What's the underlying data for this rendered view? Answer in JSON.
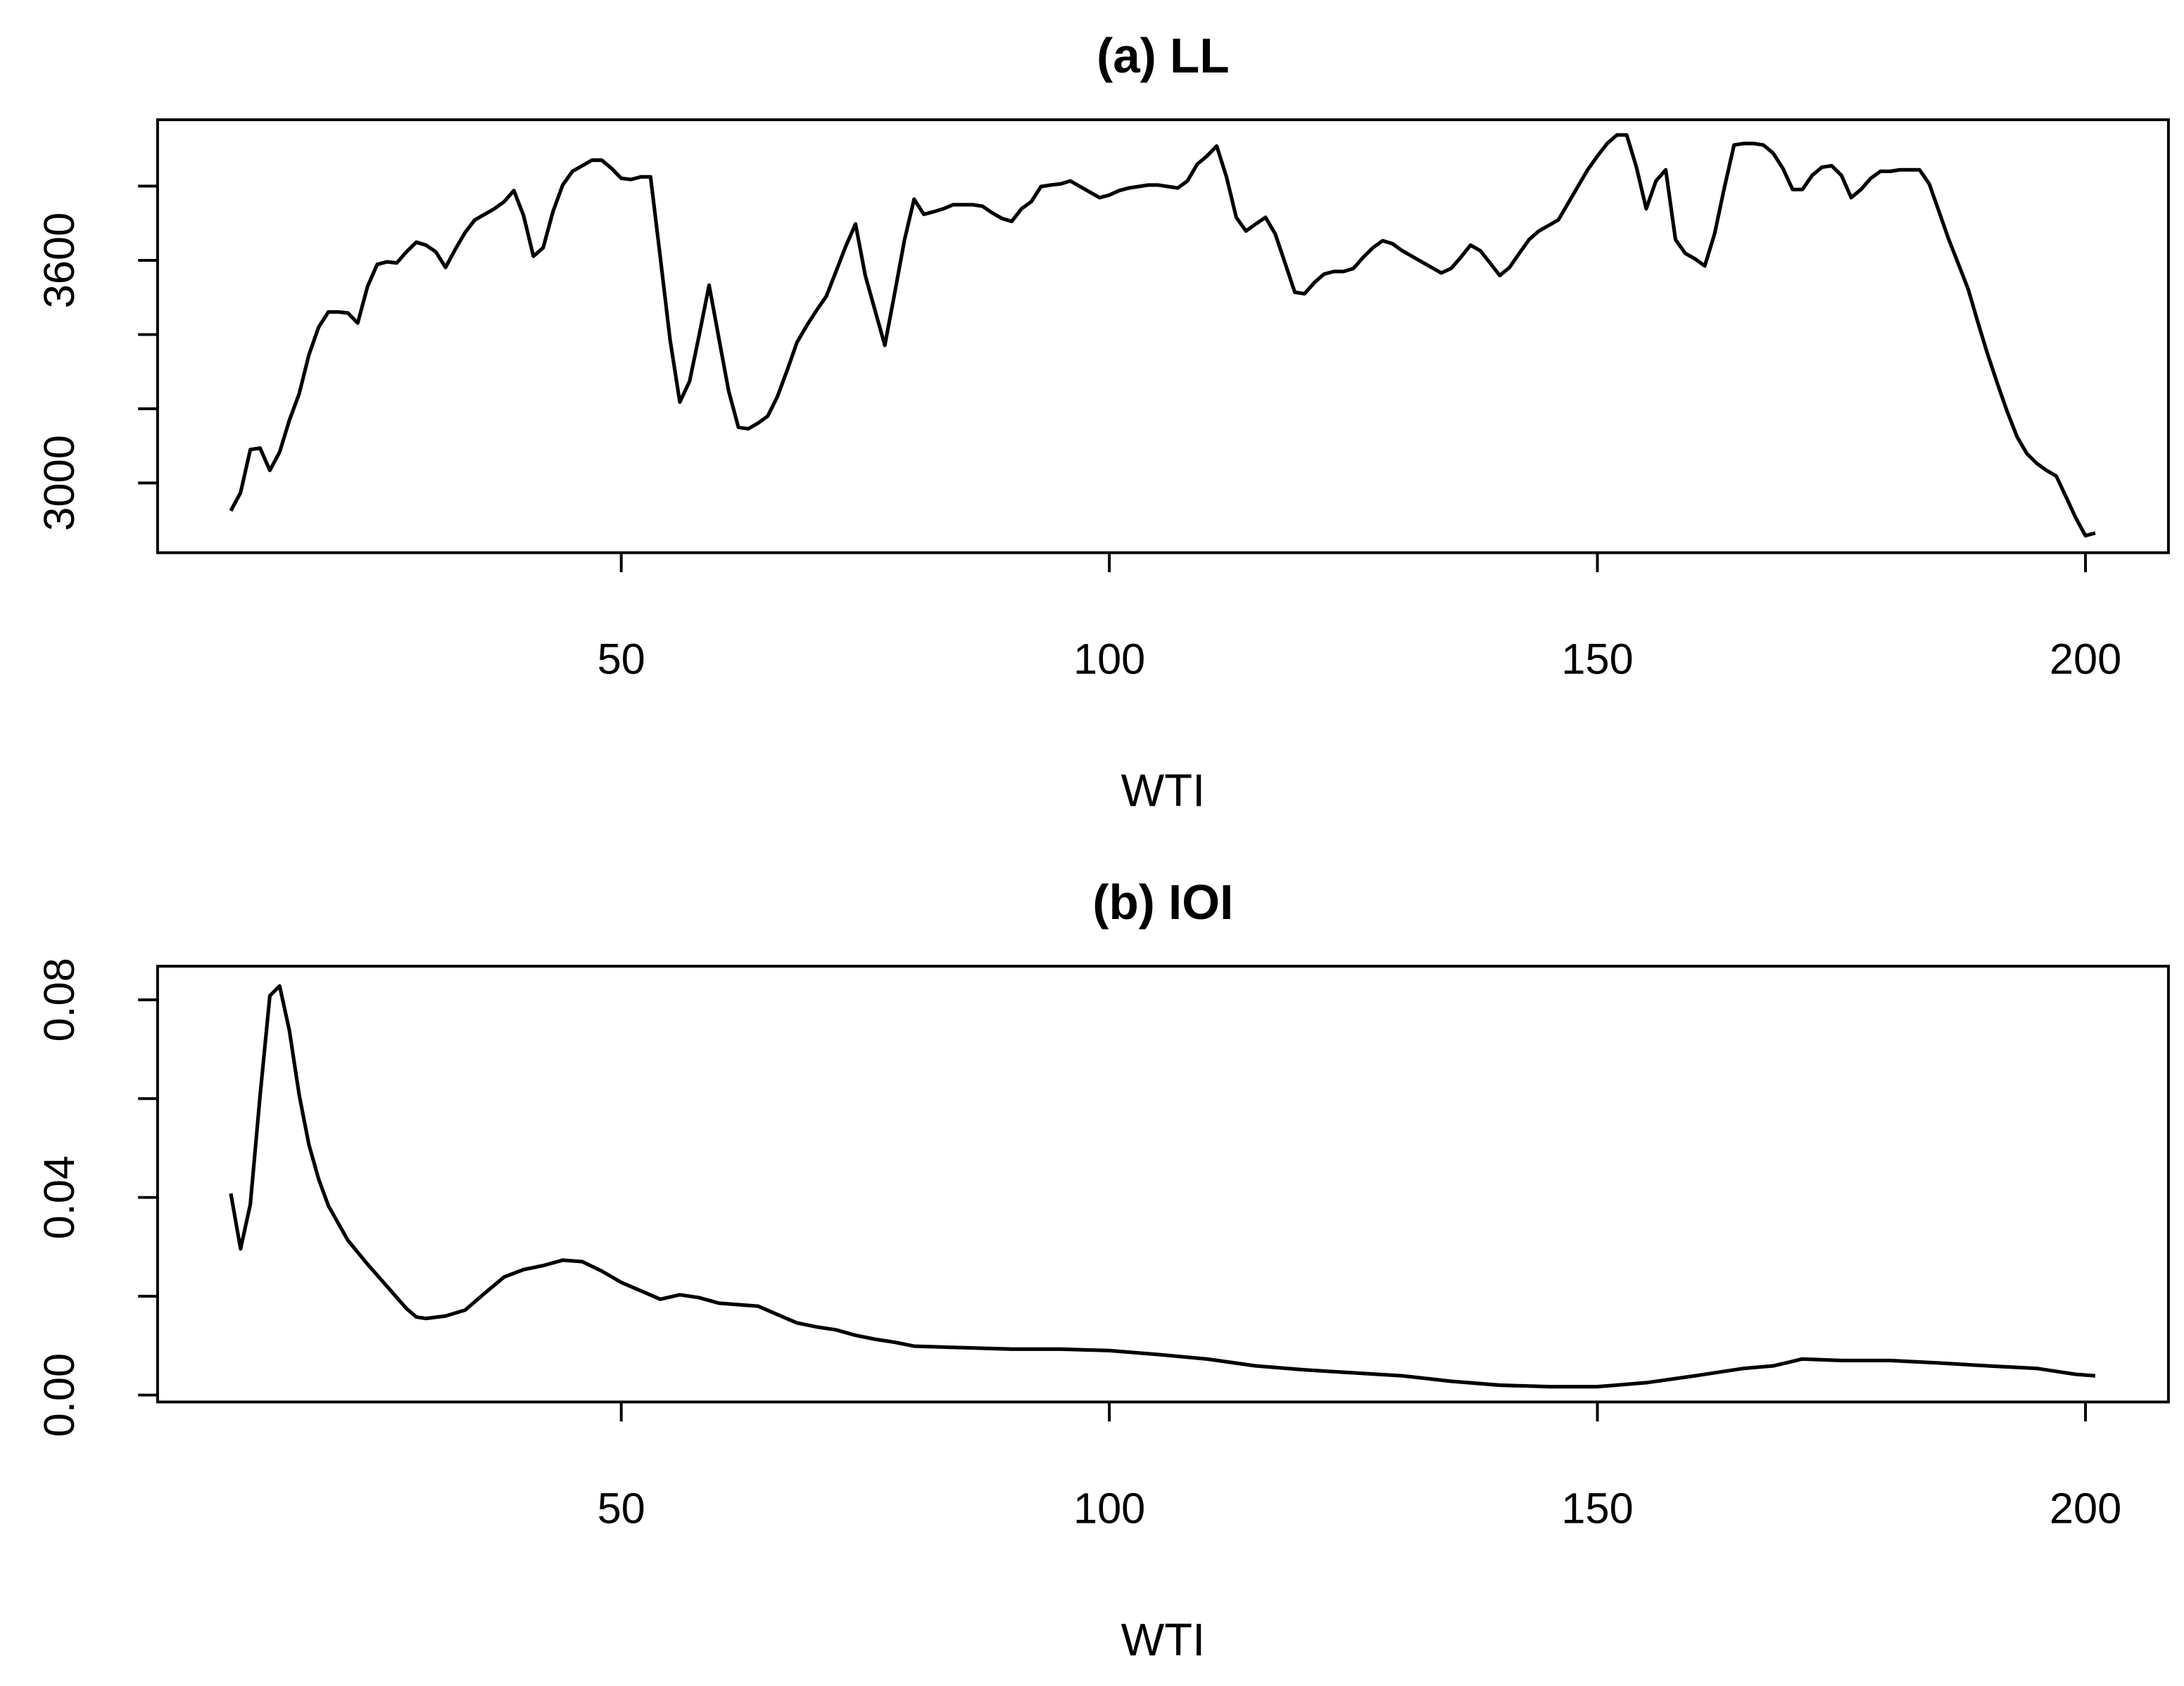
{
  "chart_data": [
    {
      "type": "line",
      "title": "(a) LL",
      "xlabel": "WTI",
      "color": "#000000",
      "xlim": [
        2.5,
        208.5
      ],
      "xticks": [
        50,
        100,
        150,
        200
      ],
      "ylim": [
        2812,
        3979
      ],
      "yticks": [
        3000,
        {
          "value": 3200,
          "label": null
        },
        {
          "value": 3400,
          "label": null
        },
        3600,
        {
          "value": 3800,
          "label": null
        }
      ],
      "x": [
        10,
        11,
        12,
        13,
        14,
        15,
        16,
        17,
        18,
        19,
        20,
        21,
        22,
        23,
        24,
        25,
        26,
        27,
        28,
        29,
        30,
        31,
        32,
        33,
        34,
        35,
        36,
        37,
        38,
        39,
        40,
        41,
        42,
        43,
        44,
        45,
        46,
        47,
        48,
        49,
        50,
        51,
        52,
        53,
        54,
        55,
        56,
        57,
        58,
        59,
        60,
        61,
        62,
        63,
        64,
        65,
        66,
        67,
        68,
        69,
        70,
        71,
        72,
        73,
        74,
        75,
        76,
        77,
        78,
        79,
        80,
        81,
        82,
        83,
        84,
        85,
        86,
        87,
        88,
        89,
        90,
        91,
        92,
        93,
        94,
        95,
        96,
        97,
        98,
        99,
        100,
        101,
        102,
        103,
        104,
        105,
        106,
        107,
        108,
        109,
        110,
        111,
        112,
        113,
        114,
        115,
        116,
        117,
        118,
        119,
        120,
        121,
        122,
        123,
        124,
        125,
        126,
        127,
        128,
        129,
        130,
        131,
        132,
        133,
        134,
        135,
        136,
        137,
        138,
        139,
        140,
        141,
        142,
        143,
        144,
        145,
        146,
        147,
        148,
        149,
        150,
        151,
        152,
        153,
        154,
        155,
        156,
        157,
        158,
        159,
        160,
        161,
        162,
        163,
        164,
        165,
        166,
        167,
        168,
        169,
        170,
        171,
        172,
        173,
        174,
        175,
        176,
        177,
        178,
        179,
        180,
        181,
        182,
        183,
        184,
        185,
        186,
        187,
        188,
        189,
        190,
        191,
        192,
        193,
        194,
        195,
        196,
        197,
        198,
        199,
        200,
        201
      ],
      "values": [
        2925,
        2974,
        3090,
        3094,
        3034,
        3083,
        3169,
        3240,
        3345,
        3420,
        3461,
        3461,
        3458,
        3431,
        3529,
        3589,
        3596,
        3593,
        3623,
        3649,
        3641,
        3623,
        3581,
        3630,
        3675,
        3709,
        3724,
        3739,
        3758,
        3788,
        3720,
        3611,
        3634,
        3731,
        3803,
        3840,
        3855,
        3870,
        3870,
        3848,
        3821,
        3818,
        3825,
        3825,
        3608,
        3386,
        3218,
        3274,
        3401,
        3533,
        3390,
        3248,
        3150,
        3146,
        3161,
        3180,
        3233,
        3304,
        3379,
        3424,
        3465,
        3503,
        3570,
        3638,
        3698,
        3559,
        3465,
        3371,
        3510,
        3653,
        3765,
        3724,
        3731,
        3739,
        3750,
        3750,
        3750,
        3746,
        3728,
        3713,
        3705,
        3739,
        3758,
        3799,
        3803,
        3806,
        3814,
        3799,
        3784,
        3769,
        3776,
        3788,
        3795,
        3799,
        3803,
        3803,
        3799,
        3795,
        3814,
        3859,
        3881,
        3908,
        3825,
        3716,
        3679,
        3698,
        3716,
        3671,
        3593,
        3514,
        3510,
        3540,
        3563,
        3570,
        3570,
        3578,
        3608,
        3634,
        3653,
        3645,
        3626,
        3611,
        3596,
        3581,
        3566,
        3578,
        3608,
        3641,
        3626,
        3593,
        3559,
        3581,
        3619,
        3656,
        3679,
        3694,
        3709,
        3754,
        3799,
        3844,
        3881,
        3915,
        3938,
        3938,
        3851,
        3739,
        3814,
        3844,
        3656,
        3619,
        3604,
        3585,
        3671,
        3795,
        3911,
        3915,
        3915,
        3911,
        3889,
        3848,
        3791,
        3791,
        3829,
        3851,
        3855,
        3829,
        3769,
        3791,
        3821,
        3840,
        3840,
        3844,
        3844,
        3844,
        3806,
        3731,
        3656,
        3589,
        3521,
        3431,
        3345,
        3266,
        3191,
        3124,
        3079,
        3053,
        3034,
        3019,
        2963,
        2906,
        2858,
        2865
      ]
    },
    {
      "type": "line",
      "title": "(b) IOI",
      "xlabel": "WTI",
      "color": "#000000",
      "xlim": [
        2.5,
        208.5
      ],
      "xticks": [
        50,
        100,
        150,
        200
      ],
      "ylim": [
        -0.0014,
        0.0868
      ],
      "yticks": [
        {
          "value": 0,
          "label": "0.00"
        },
        {
          "value": 0.02,
          "label": null
        },
        0.04,
        {
          "value": 0.06,
          "label": null
        },
        0.08
      ],
      "x": [
        10,
        11,
        12,
        13,
        14,
        15,
        16,
        17,
        18,
        19,
        20,
        22,
        24,
        26,
        28,
        29,
        30,
        32,
        34,
        36,
        38,
        40,
        42,
        44,
        46,
        48,
        50,
        52,
        54,
        56,
        58,
        60,
        62,
        64,
        66,
        68,
        70,
        72,
        74,
        76,
        78,
        80,
        85,
        90,
        95,
        100,
        105,
        110,
        115,
        120,
        125,
        130,
        135,
        140,
        145,
        150,
        155,
        160,
        165,
        168,
        171,
        175,
        180,
        185,
        190,
        195,
        199,
        201
      ],
      "values": [
        0.0408,
        0.0296,
        0.0386,
        0.0606,
        0.0808,
        0.0828,
        0.0738,
        0.0608,
        0.0507,
        0.0437,
        0.0383,
        0.0313,
        0.0265,
        0.022,
        0.0175,
        0.0158,
        0.0155,
        0.016,
        0.0172,
        0.0206,
        0.0239,
        0.0254,
        0.0262,
        0.0273,
        0.027,
        0.0251,
        0.0228,
        0.0211,
        0.0194,
        0.0203,
        0.0197,
        0.0186,
        0.0183,
        0.018,
        0.0163,
        0.0146,
        0.0138,
        0.0132,
        0.0121,
        0.0113,
        0.0107,
        0.0099,
        0.0096,
        0.0093,
        0.0093,
        0.009,
        0.0082,
        0.0073,
        0.0059,
        0.0051,
        0.0045,
        0.0039,
        0.0028,
        0.002,
        0.0017,
        0.0017,
        0.0025,
        0.0039,
        0.0054,
        0.0059,
        0.0073,
        0.007,
        0.007,
        0.0065,
        0.0059,
        0.0054,
        0.0042,
        0.0039
      ]
    }
  ]
}
